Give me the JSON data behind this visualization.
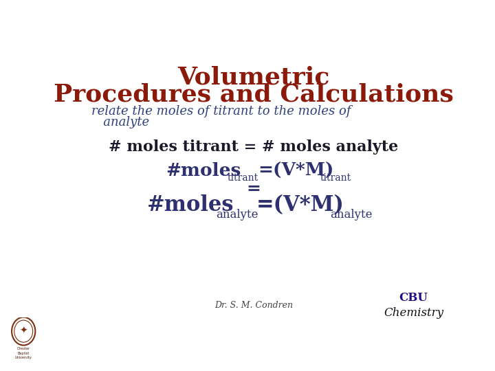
{
  "title_line1": "Volumetric",
  "title_line2": "Procedures and Calculations",
  "title_color": "#8B1A0A",
  "subtitle_line1": "relate the moles of titrant to the moles of",
  "subtitle_line2": "   analyte",
  "subtitle_color": "#2E4080",
  "line1": "# moles titrant = # moles analyte",
  "line1_color": "#1a1a2a",
  "eq_color": "#2E3070",
  "footer": "Dr. S. M. Condren",
  "footer_color": "#444444",
  "bg_color": "#ffffff",
  "cbu_color": "#1E1080",
  "cbu_chem_color": "#111111"
}
